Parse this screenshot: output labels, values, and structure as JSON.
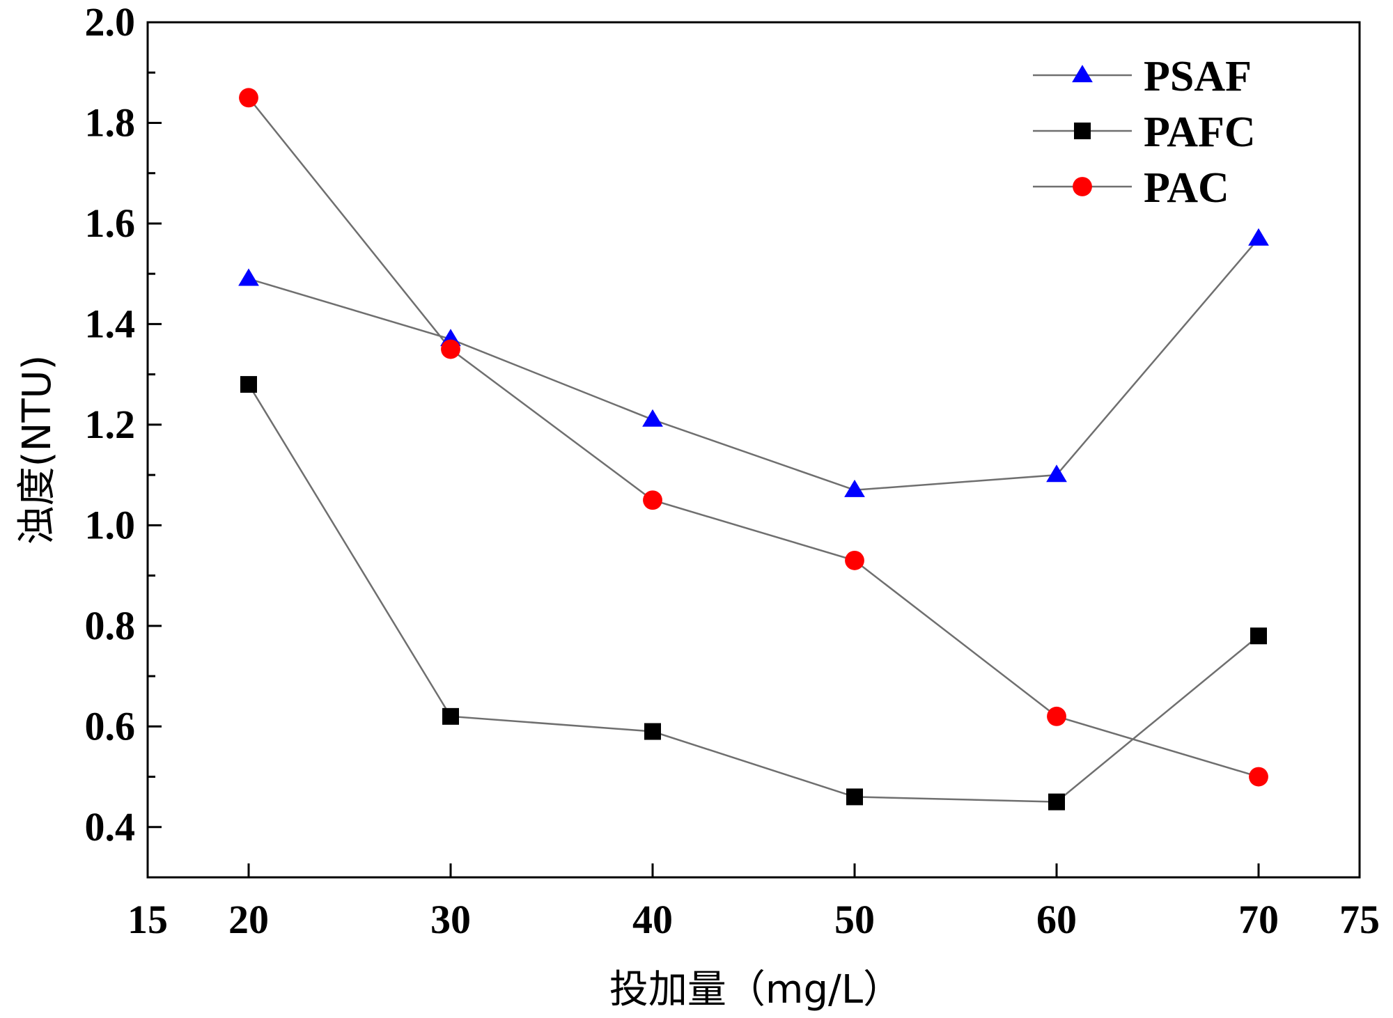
{
  "chart_data": {
    "type": "line",
    "title": "",
    "xlabel": "投加量（mg/L）",
    "ylabel": "浊度(NTU)",
    "xlim": [
      15,
      75
    ],
    "ylim": [
      0.3,
      2.0
    ],
    "x_ticks": [
      15,
      20,
      30,
      40,
      50,
      60,
      70,
      75
    ],
    "x_tick_labels": [
      "15",
      "20",
      "30",
      "40",
      "50",
      "60",
      "70",
      "75"
    ],
    "y_ticks": [
      0.4,
      0.6,
      0.8,
      1.0,
      1.2,
      1.4,
      1.6,
      1.8,
      2.0
    ],
    "y_tick_labels": [
      "0.4",
      "0.6",
      "0.8",
      "1.0",
      "1.2",
      "1.4",
      "1.6",
      "1.8",
      "2.0"
    ],
    "legend_position": "top-right",
    "grid": false,
    "x": [
      20,
      30,
      40,
      50,
      60,
      70
    ],
    "series": [
      {
        "name": "PSAF",
        "marker": "triangle",
        "color": "#0000ff",
        "values": [
          1.49,
          1.37,
          1.21,
          1.07,
          1.1,
          1.57
        ]
      },
      {
        "name": "PAFC",
        "marker": "square",
        "color": "#000000",
        "values": [
          1.28,
          0.62,
          0.59,
          0.46,
          0.45,
          0.78
        ]
      },
      {
        "name": "PAC",
        "marker": "circle",
        "color": "#ff0000",
        "values": [
          1.85,
          1.35,
          1.05,
          0.93,
          0.62,
          0.5
        ]
      }
    ],
    "line_color": "#6f6f6f"
  }
}
